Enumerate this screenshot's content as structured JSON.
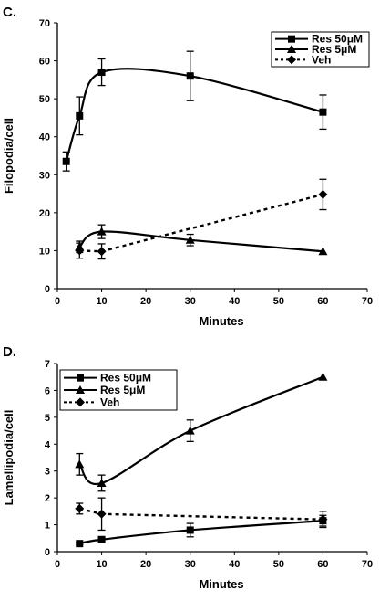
{
  "chart_data": [
    {
      "type": "line",
      "panel_label": "C.",
      "xlabel": "Minutes",
      "ylabel": "Filopodia/cell",
      "xlim": [
        0,
        70
      ],
      "ylim": [
        0,
        70
      ],
      "xticks": [
        0,
        10,
        20,
        30,
        40,
        50,
        60,
        70
      ],
      "yticks": [
        0,
        10,
        20,
        30,
        40,
        50,
        60,
        70
      ],
      "legend": "top-right",
      "grid": false,
      "series": [
        {
          "name": "Res 50μM",
          "marker": "square",
          "dash": "solid",
          "x": [
            2,
            5,
            10,
            30,
            60
          ],
          "y": [
            33.5,
            45.5,
            57,
            56,
            46.5
          ],
          "err": [
            2.5,
            5,
            3.5,
            6.5,
            4.5
          ]
        },
        {
          "name": "Res 5μM",
          "marker": "triangle",
          "dash": "solid",
          "x": [
            5,
            10,
            30,
            60
          ],
          "y": [
            11,
            15,
            12.8,
            9.8
          ],
          "err": [
            1.5,
            1.8,
            1.5,
            0
          ]
        },
        {
          "name": "Veh",
          "marker": "diamond",
          "dash": "dotted",
          "x": [
            5,
            10,
            60
          ],
          "y": [
            10,
            9.8,
            24.8
          ],
          "err": [
            2,
            2,
            4
          ]
        }
      ]
    },
    {
      "type": "line",
      "panel_label": "D.",
      "xlabel": "Minutes",
      "ylabel": "Lamellipodia/cell",
      "xlim": [
        0,
        70
      ],
      "ylim": [
        0,
        7
      ],
      "xticks": [
        0,
        10,
        20,
        30,
        40,
        50,
        60,
        70
      ],
      "yticks": [
        0,
        1,
        2,
        3,
        4,
        5,
        6,
        7
      ],
      "legend": "top-left",
      "grid": false,
      "series": [
        {
          "name": "Res 50μM",
          "marker": "square",
          "dash": "solid",
          "x": [
            5,
            10,
            30,
            60
          ],
          "y": [
            0.3,
            0.45,
            0.8,
            1.15
          ],
          "err": [
            0.05,
            0.08,
            0.25,
            0.2
          ]
        },
        {
          "name": "Res 5μM",
          "marker": "triangle",
          "dash": "solid",
          "x": [
            5,
            10,
            30,
            60
          ],
          "y": [
            3.25,
            2.55,
            4.5,
            6.5
          ],
          "err": [
            0.4,
            0.3,
            0.4,
            0
          ]
        },
        {
          "name": "Veh",
          "marker": "diamond",
          "dash": "dotted",
          "x": [
            5,
            10,
            60
          ],
          "y": [
            1.6,
            1.4,
            1.2
          ],
          "err": [
            0.2,
            0.6,
            0.3
          ]
        }
      ]
    }
  ]
}
